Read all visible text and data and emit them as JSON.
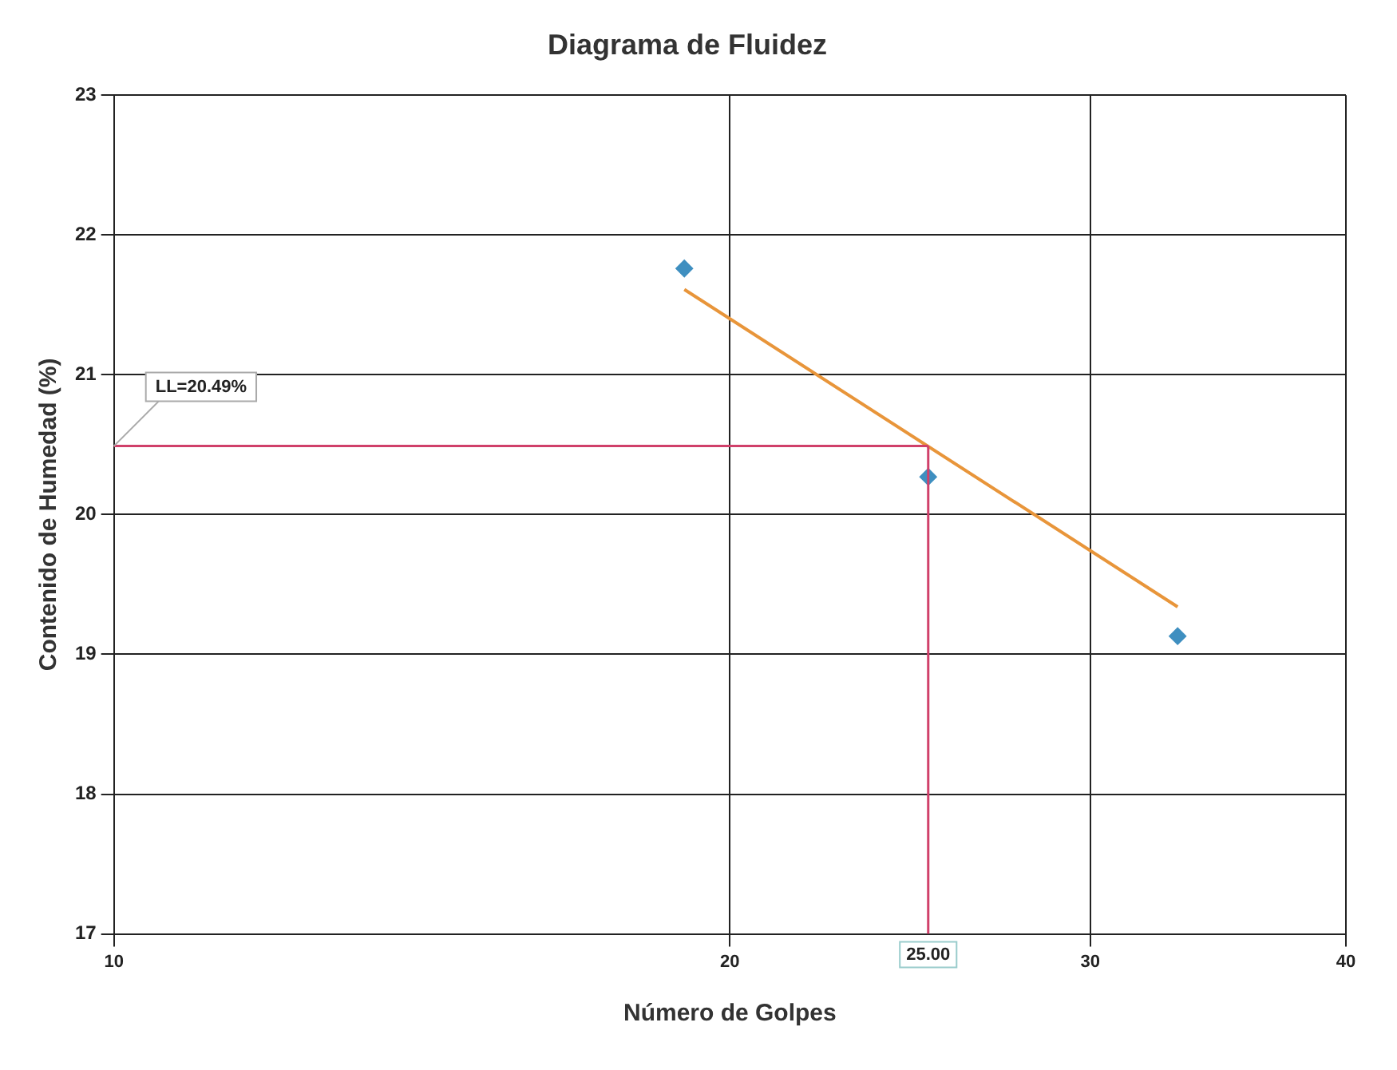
{
  "chart_data": {
    "type": "scatter",
    "title": "Diagrama de Fluidez",
    "xlabel": "Número de Golpes",
    "ylabel": "Contenido de Humedad (%)",
    "log": "x",
    "xlim": [
      10,
      40
    ],
    "xticks": [
      10,
      20,
      30,
      40
    ],
    "ylim": [
      17,
      23
    ],
    "yticks": [
      17,
      18,
      19,
      20,
      21,
      22,
      23
    ],
    "grid": true,
    "legend": false,
    "series": [
      {
        "type": "scatter",
        "x": [
          19,
          25,
          33.1
        ],
        "values": [
          21.76,
          20.27,
          19.13
        ],
        "color": "#3f8fc0",
        "marker": "diamond"
      },
      {
        "type": "line",
        "x": [
          19,
          33.1
        ],
        "values": [
          21.61,
          19.34
        ],
        "color": "#e8953a",
        "marker": "none",
        "line_style": "solid"
      }
    ],
    "ref_lines": [
      {
        "axis": "y",
        "value": 20.49,
        "label": "LL=20.49%",
        "color": "#d0406a"
      },
      {
        "axis": "x",
        "value": 25,
        "label": "25.00",
        "color": "#d0406a"
      }
    ]
  }
}
